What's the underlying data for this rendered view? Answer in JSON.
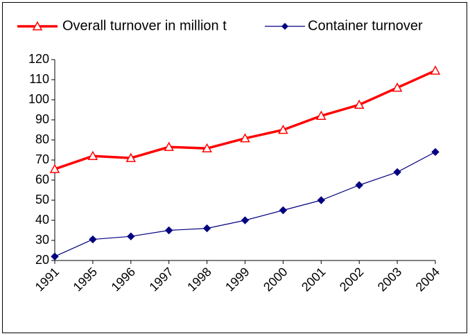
{
  "chart_data": {
    "type": "line",
    "categories": [
      "1991",
      "1995",
      "1996",
      "1997",
      "1998",
      "1999",
      "2000",
      "2001",
      "2002",
      "2003",
      "2004"
    ],
    "series": [
      {
        "name": "Overall turnover in million t",
        "color": "#ff0000",
        "marker": "triangle",
        "values": [
          65.5,
          72,
          71,
          76.5,
          75.8,
          80.8,
          85,
          92,
          97.5,
          106,
          114.5
        ]
      },
      {
        "name": "Container turnover",
        "color": "#000080",
        "marker": "diamond",
        "values": [
          22,
          30.5,
          32,
          35,
          36,
          40,
          45,
          50,
          57.5,
          64,
          74
        ]
      }
    ],
    "ylim": [
      20,
      120
    ],
    "yticks": [
      20,
      30,
      40,
      50,
      60,
      70,
      80,
      90,
      100,
      110,
      120
    ],
    "grid": false,
    "legend": "top"
  }
}
